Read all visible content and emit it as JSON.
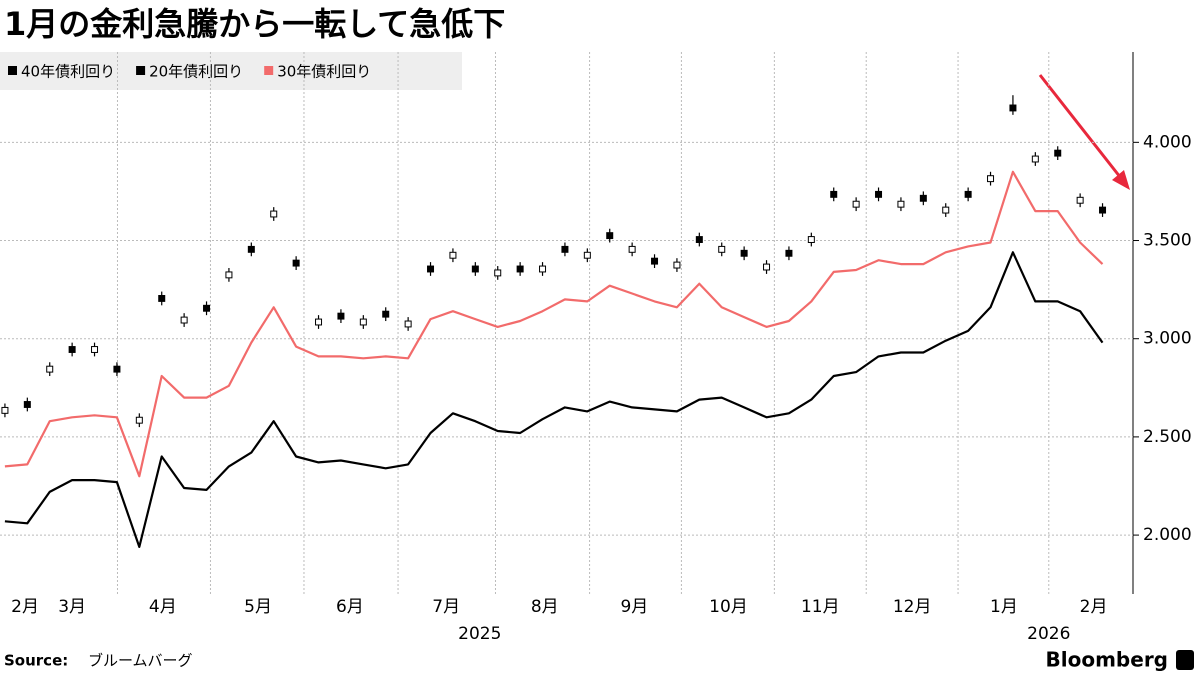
{
  "chart_data": {
    "type": "line",
    "title": "1月の金利急騰から一転して急低下",
    "source_label": "Source:",
    "source": "ブルームバーグ",
    "brand": "Bloomberg",
    "legend": "top-left",
    "grid": true,
    "xlim": [
      -0.22,
      50.36
    ],
    "ylim": [
      1.7,
      4.46
    ],
    "yticks": [
      {
        "value": 2,
        "label": "2.000"
      },
      {
        "value": 2.5,
        "label": "2.500"
      },
      {
        "value": 3,
        "label": "3.000"
      },
      {
        "value": 3.5,
        "label": "3.500"
      },
      {
        "value": 4,
        "label": "4.000"
      }
    ],
    "xticks": [
      {
        "value": 0.9,
        "label": "2月"
      },
      {
        "value": 3.0,
        "label": "3月"
      },
      {
        "value": 7.05,
        "label": "4月"
      },
      {
        "value": 11.3,
        "label": "5月"
      },
      {
        "value": 15.4,
        "label": "6月"
      },
      {
        "value": 19.7,
        "label": "7月"
      },
      {
        "value": 24.1,
        "label": "8月"
      },
      {
        "value": 28.1,
        "label": "9月"
      },
      {
        "value": 32.3,
        "label": "10月"
      },
      {
        "value": 36.4,
        "label": "11月"
      },
      {
        "value": 40.5,
        "label": "12月"
      },
      {
        "value": 44.6,
        "label": "1月"
      },
      {
        "value": 48.6,
        "label": "2月"
      }
    ],
    "year_ticks": [
      {
        "value": 21.2,
        "label": "2025"
      },
      {
        "value": 46.6,
        "label": "2026"
      }
    ],
    "series": [
      {
        "name": "40年債利回り",
        "color": "#000000",
        "style": "candlestick",
        "open": [
          2.62,
          2.68,
          2.83,
          2.96,
          2.93,
          2.86,
          2.57,
          3.22,
          3.08,
          3.17,
          3.31,
          3.47,
          3.62,
          3.4,
          3.07,
          3.13,
          3.07,
          3.14,
          3.06,
          3.37,
          3.41,
          3.37,
          3.32,
          3.37,
          3.34,
          3.47,
          3.41,
          3.54,
          3.44,
          3.41,
          3.36,
          3.52,
          3.44,
          3.45,
          3.35,
          3.45,
          3.49,
          3.75,
          3.67,
          3.75,
          3.67,
          3.73,
          3.64,
          3.75,
          3.8,
          4.19,
          3.9,
          3.96,
          3.69,
          3.67
        ],
        "high": [
          2.67,
          2.7,
          2.88,
          2.98,
          2.98,
          2.88,
          2.62,
          3.24,
          3.13,
          3.19,
          3.36,
          3.49,
          3.67,
          3.42,
          3.12,
          3.15,
          3.12,
          3.16,
          3.11,
          3.39,
          3.46,
          3.39,
          3.37,
          3.39,
          3.39,
          3.49,
          3.46,
          3.56,
          3.49,
          3.43,
          3.41,
          3.54,
          3.49,
          3.47,
          3.4,
          3.47,
          3.54,
          3.77,
          3.72,
          3.77,
          3.72,
          3.75,
          3.69,
          3.77,
          3.85,
          4.24,
          3.95,
          3.98,
          3.74,
          3.69
        ],
        "low": [
          2.6,
          2.63,
          2.81,
          2.91,
          2.91,
          2.81,
          2.55,
          3.17,
          3.06,
          3.12,
          3.29,
          3.42,
          3.6,
          3.35,
          3.05,
          3.08,
          3.05,
          3.09,
          3.04,
          3.32,
          3.39,
          3.32,
          3.3,
          3.32,
          3.32,
          3.42,
          3.39,
          3.49,
          3.42,
          3.36,
          3.34,
          3.47,
          3.42,
          3.4,
          3.33,
          3.4,
          3.47,
          3.7,
          3.65,
          3.7,
          3.65,
          3.68,
          3.62,
          3.7,
          3.78,
          4.14,
          3.88,
          3.91,
          3.67,
          3.62
        ],
        "close": [
          2.65,
          2.65,
          2.86,
          2.93,
          2.96,
          2.83,
          2.6,
          3.19,
          3.11,
          3.14,
          3.34,
          3.44,
          3.65,
          3.37,
          3.1,
          3.1,
          3.1,
          3.11,
          3.09,
          3.34,
          3.44,
          3.34,
          3.35,
          3.34,
          3.37,
          3.44,
          3.44,
          3.51,
          3.47,
          3.38,
          3.39,
          3.49,
          3.47,
          3.42,
          3.38,
          3.42,
          3.52,
          3.72,
          3.7,
          3.72,
          3.7,
          3.7,
          3.67,
          3.72,
          3.83,
          4.16,
          3.93,
          3.93,
          3.72,
          3.64
        ]
      },
      {
        "name": "20年債利回り",
        "color": "#000000",
        "style": "line",
        "values": [
          2.07,
          2.06,
          2.22,
          2.28,
          2.28,
          2.27,
          1.94,
          2.4,
          2.24,
          2.23,
          2.35,
          2.42,
          2.58,
          2.4,
          2.37,
          2.38,
          2.36,
          2.34,
          2.36,
          2.52,
          2.62,
          2.58,
          2.53,
          2.52,
          2.59,
          2.65,
          2.63,
          2.68,
          2.65,
          2.64,
          2.63,
          2.69,
          2.7,
          2.65,
          2.6,
          2.62,
          2.69,
          2.81,
          2.83,
          2.91,
          2.93,
          2.93,
          2.99,
          3.04,
          3.16,
          3.44,
          3.19,
          3.19,
          3.14,
          2.98
        ]
      },
      {
        "name": "30年債利回り",
        "color": "#f26b6b",
        "style": "line",
        "values": [
          2.35,
          2.36,
          2.58,
          2.6,
          2.61,
          2.6,
          2.3,
          2.81,
          2.7,
          2.7,
          2.76,
          2.98,
          3.16,
          2.96,
          2.91,
          2.91,
          2.9,
          2.91,
          2.9,
          3.1,
          3.14,
          3.1,
          3.06,
          3.09,
          3.14,
          3.2,
          3.19,
          3.27,
          3.23,
          3.19,
          3.16,
          3.28,
          3.16,
          3.11,
          3.06,
          3.09,
          3.19,
          3.34,
          3.35,
          3.4,
          3.38,
          3.38,
          3.44,
          3.47,
          3.49,
          3.85,
          3.65,
          3.65,
          3.49,
          3.38
        ]
      }
    ]
  }
}
